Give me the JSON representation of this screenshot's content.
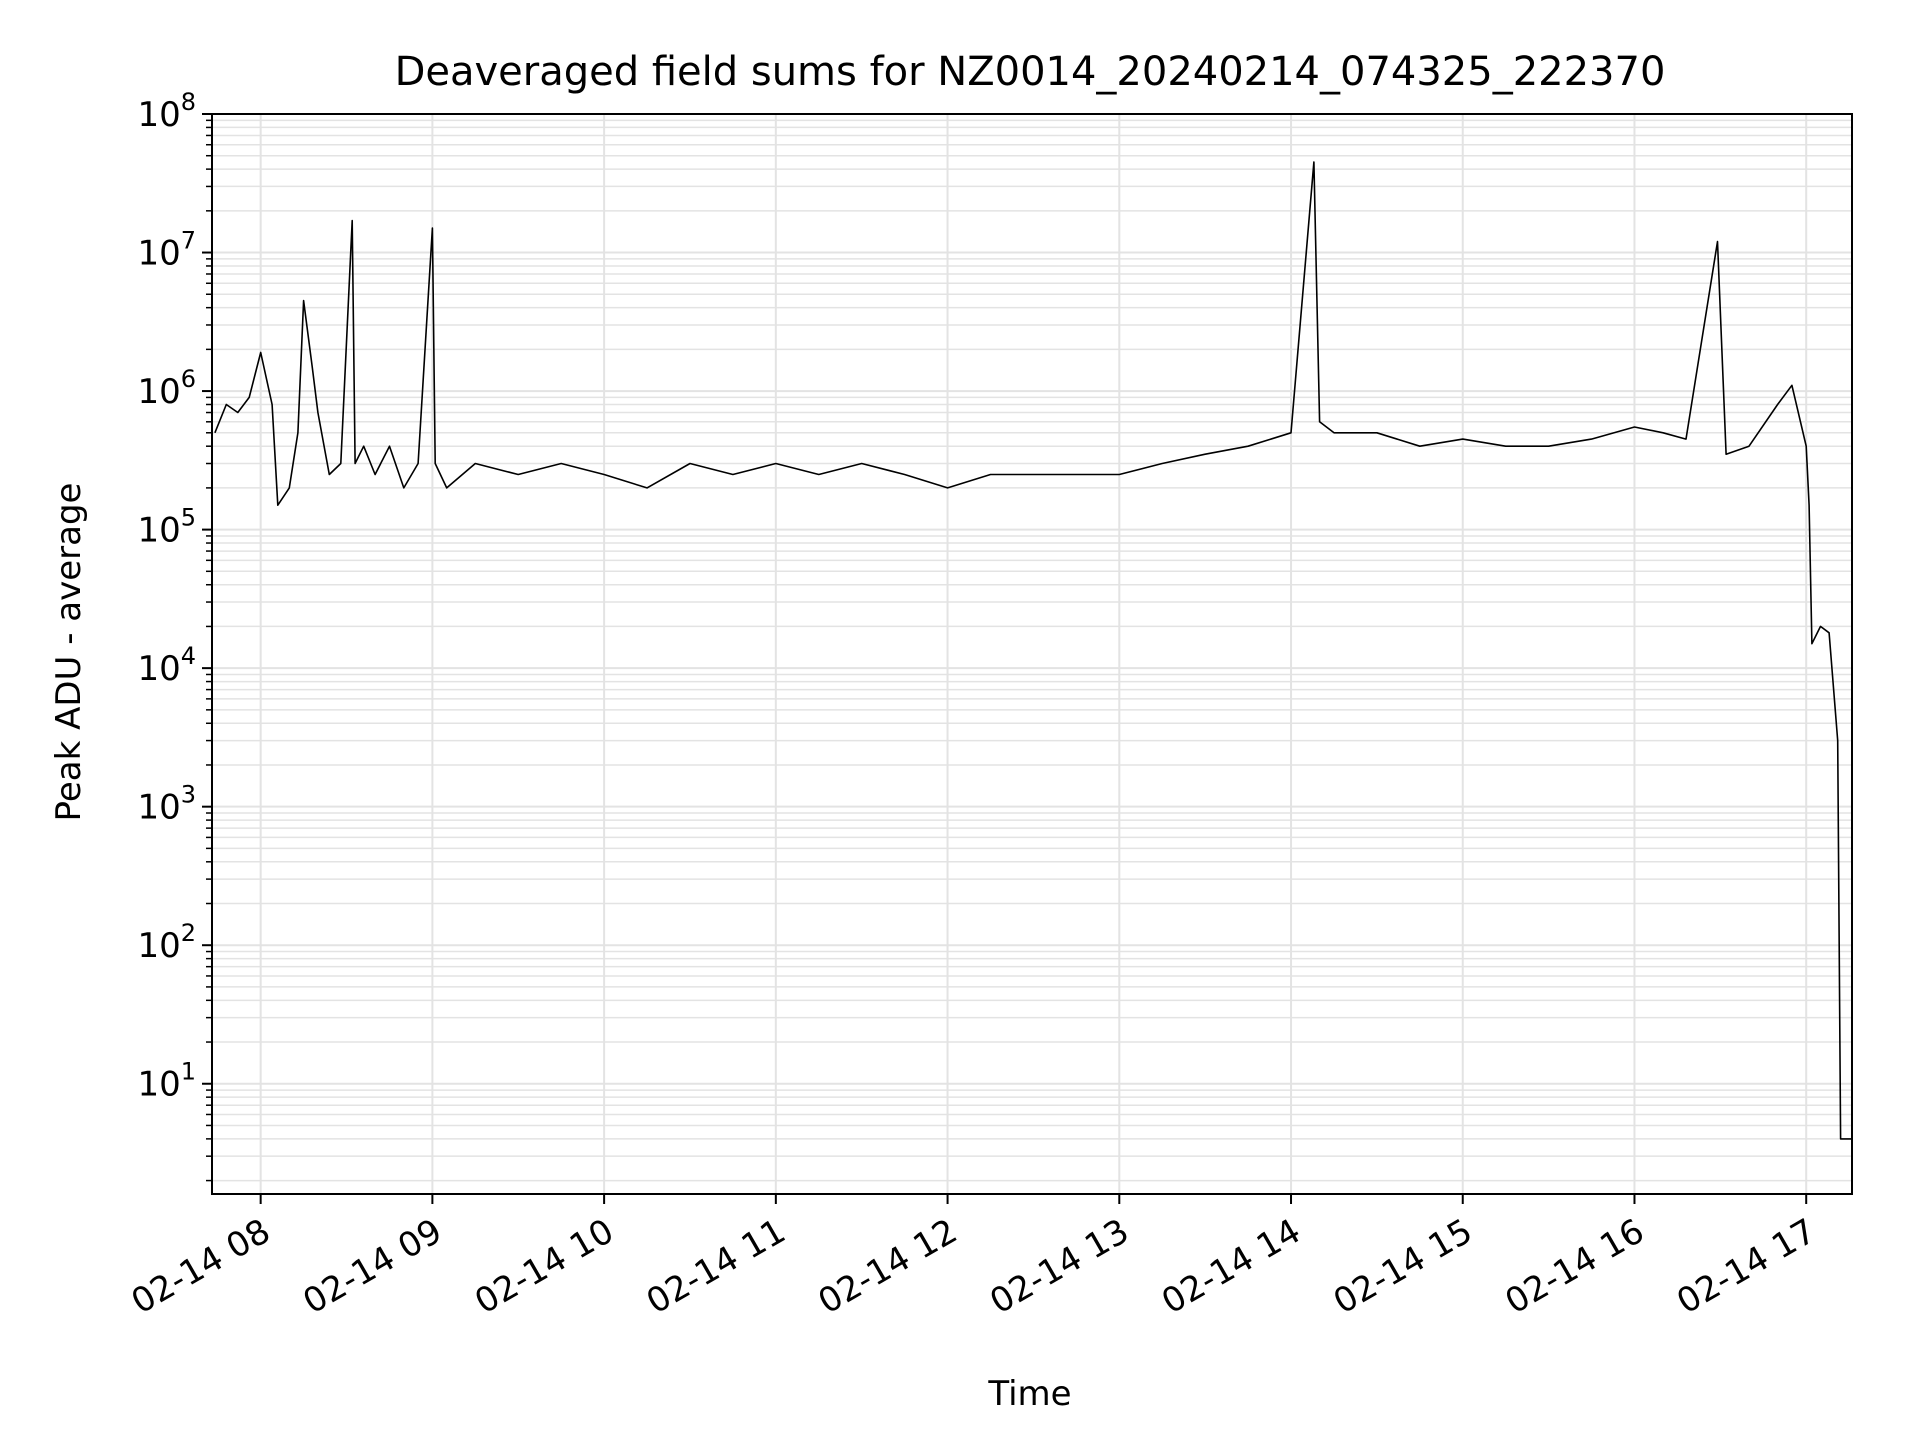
{
  "chart_data": {
    "type": "line",
    "title": "Deaveraged field sums for NZ0014_20240214_074325_222370",
    "xlabel": "Time",
    "ylabel": "Peak ADU - average",
    "yscale": "log",
    "ylim": [
      1.6,
      100000000
    ],
    "xlim": [
      "2024-02-14 07:43",
      "2024-02-14 17:16"
    ],
    "grid": true,
    "line_color": "#000000",
    "grid_color": "#e3e3e3",
    "x_ticks": [
      {
        "value": "2024-02-14 08:00",
        "label": "02-14 08"
      },
      {
        "value": "2024-02-14 09:00",
        "label": "02-14 09"
      },
      {
        "value": "2024-02-14 10:00",
        "label": "02-14 10"
      },
      {
        "value": "2024-02-14 11:00",
        "label": "02-14 11"
      },
      {
        "value": "2024-02-14 12:00",
        "label": "02-14 12"
      },
      {
        "value": "2024-02-14 13:00",
        "label": "02-14 13"
      },
      {
        "value": "2024-02-14 14:00",
        "label": "02-14 14"
      },
      {
        "value": "2024-02-14 15:00",
        "label": "02-14 15"
      },
      {
        "value": "2024-02-14 16:00",
        "label": "02-14 16"
      },
      {
        "value": "2024-02-14 17:00",
        "label": "02-14 17"
      }
    ],
    "y_ticks": [
      {
        "value": 10,
        "base": "10",
        "exp": "1"
      },
      {
        "value": 100,
        "base": "10",
        "exp": "2"
      },
      {
        "value": 1000,
        "base": "10",
        "exp": "3"
      },
      {
        "value": 10000,
        "base": "10",
        "exp": "4"
      },
      {
        "value": 100000,
        "base": "10",
        "exp": "5"
      },
      {
        "value": 1000000,
        "base": "10",
        "exp": "6"
      },
      {
        "value": 10000000,
        "base": "10",
        "exp": "7"
      },
      {
        "value": 100000000,
        "base": "10",
        "exp": "8"
      }
    ],
    "series": [
      {
        "x": [
          "2024-02-14 07:44",
          "2024-02-14 07:48",
          "2024-02-14 07:52",
          "2024-02-14 07:56",
          "2024-02-14 08:00",
          "2024-02-14 08:04",
          "2024-02-14 08:06",
          "2024-02-14 08:10",
          "2024-02-14 08:13",
          "2024-02-14 08:15",
          "2024-02-14 08:18",
          "2024-02-14 08:20",
          "2024-02-14 08:24",
          "2024-02-14 08:28",
          "2024-02-14 08:32",
          "2024-02-14 08:33",
          "2024-02-14 08:36",
          "2024-02-14 08:40",
          "2024-02-14 08:45",
          "2024-02-14 08:50",
          "2024-02-14 08:55",
          "2024-02-14 09:00",
          "2024-02-14 09:01",
          "2024-02-14 09:05",
          "2024-02-14 09:15",
          "2024-02-14 09:30",
          "2024-02-14 09:45",
          "2024-02-14 10:00",
          "2024-02-14 10:15",
          "2024-02-14 10:30",
          "2024-02-14 10:45",
          "2024-02-14 11:00",
          "2024-02-14 11:15",
          "2024-02-14 11:30",
          "2024-02-14 11:45",
          "2024-02-14 12:00",
          "2024-02-14 12:15",
          "2024-02-14 12:30",
          "2024-02-14 12:45",
          "2024-02-14 13:00",
          "2024-02-14 13:15",
          "2024-02-14 13:30",
          "2024-02-14 13:45",
          "2024-02-14 14:00",
          "2024-02-14 14:08",
          "2024-02-14 14:10",
          "2024-02-14 14:15",
          "2024-02-14 14:30",
          "2024-02-14 14:45",
          "2024-02-14 15:00",
          "2024-02-14 15:15",
          "2024-02-14 15:30",
          "2024-02-14 15:45",
          "2024-02-14 16:00",
          "2024-02-14 16:10",
          "2024-02-14 16:18",
          "2024-02-14 16:29",
          "2024-02-14 16:32",
          "2024-02-14 16:40",
          "2024-02-14 16:50",
          "2024-02-14 16:55",
          "2024-02-14 17:00",
          "2024-02-14 17:01",
          "2024-02-14 17:02",
          "2024-02-14 17:05",
          "2024-02-14 17:08",
          "2024-02-14 17:11",
          "2024-02-14 17:12",
          "2024-02-14 17:16"
        ],
        "y": [
          500000,
          800000,
          700000,
          900000,
          1900000,
          800000,
          150000,
          200000,
          500000,
          4500000,
          1500000,
          700000,
          250000,
          300000,
          17000000,
          300000,
          400000,
          250000,
          400000,
          200000,
          300000,
          15000000,
          300000,
          200000,
          300000,
          250000,
          300000,
          250000,
          200000,
          300000,
          250000,
          300000,
          250000,
          300000,
          250000,
          200000,
          250000,
          250000,
          250000,
          250000,
          300000,
          350000,
          400000,
          500000,
          45000000,
          600000,
          500000,
          500000,
          400000,
          450000,
          400000,
          400000,
          450000,
          550000,
          500000,
          450000,
          12000000,
          350000,
          400000,
          800000,
          1100000,
          400000,
          150000,
          15000,
          20000,
          18000,
          3000,
          4,
          4
        ]
      }
    ]
  }
}
